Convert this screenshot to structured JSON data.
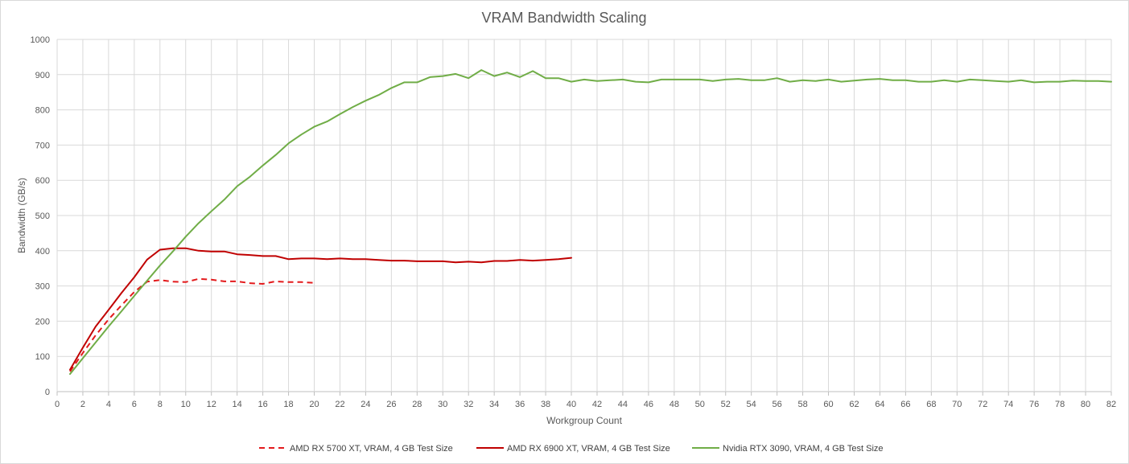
{
  "chart_data": {
    "type": "line",
    "title": "VRAM Bandwidth Scaling",
    "xlabel": "Workgroup Count",
    "ylabel": "Bandwidth (GB/s)",
    "xlim": [
      0,
      82
    ],
    "ylim": [
      0,
      1000
    ],
    "x_ticks": [
      0,
      2,
      4,
      6,
      8,
      10,
      12,
      14,
      16,
      18,
      20,
      22,
      24,
      26,
      28,
      30,
      32,
      34,
      36,
      38,
      40,
      42,
      44,
      46,
      48,
      50,
      52,
      54,
      56,
      58,
      60,
      62,
      64,
      66,
      68,
      70,
      72,
      74,
      76,
      78,
      80,
      82
    ],
    "y_ticks": [
      0,
      100,
      200,
      300,
      400,
      500,
      600,
      700,
      800,
      900,
      1000
    ],
    "grid": true,
    "legend_position": "bottom",
    "series": [
      {
        "name": "AMD RX 5700 XT, VRAM, 4 GB Test Size",
        "color": "#e31a1c",
        "dash": "dashed",
        "x": [
          1,
          2,
          3,
          4,
          5,
          6,
          7,
          8,
          9,
          10,
          11,
          12,
          13,
          14,
          15,
          16,
          17,
          18,
          19,
          20
        ],
        "values": [
          57,
          110,
          160,
          205,
          245,
          283,
          312,
          317,
          312,
          311,
          320,
          318,
          313,
          313,
          308,
          306,
          313,
          311,
          311,
          309
        ]
      },
      {
        "name": "AMD RX 6900 XT, VRAM, 4 GB Test Size",
        "color": "#c00000",
        "dash": "solid",
        "x": [
          1,
          2,
          3,
          4,
          5,
          6,
          7,
          8,
          9,
          10,
          11,
          12,
          13,
          14,
          15,
          16,
          17,
          18,
          19,
          20,
          21,
          22,
          23,
          24,
          25,
          26,
          27,
          28,
          29,
          30,
          31,
          32,
          33,
          34,
          35,
          36,
          37,
          38,
          39,
          40
        ],
        "values": [
          62,
          125,
          185,
          232,
          280,
          325,
          375,
          403,
          407,
          407,
          400,
          398,
          398,
          390,
          388,
          385,
          385,
          376,
          378,
          378,
          376,
          378,
          376,
          376,
          374,
          372,
          372,
          370,
          370,
          370,
          367,
          369,
          367,
          371,
          371,
          374,
          372,
          374,
          376,
          380
        ]
      },
      {
        "name": "Nvidia RTX 3090, VRAM, 4 GB Test Size",
        "color": "#70ad47",
        "dash": "solid",
        "x": [
          1,
          2,
          3,
          4,
          5,
          6,
          7,
          8,
          9,
          10,
          11,
          12,
          13,
          14,
          15,
          16,
          17,
          18,
          19,
          20,
          21,
          22,
          23,
          24,
          25,
          26,
          27,
          28,
          29,
          30,
          31,
          32,
          33,
          34,
          35,
          36,
          37,
          38,
          39,
          40,
          41,
          42,
          43,
          44,
          45,
          46,
          47,
          48,
          49,
          50,
          51,
          52,
          53,
          54,
          55,
          56,
          57,
          58,
          59,
          60,
          61,
          62,
          63,
          64,
          65,
          66,
          67,
          68,
          69,
          70,
          71,
          72,
          73,
          74,
          75,
          76,
          77,
          78,
          79,
          80,
          81,
          82
        ],
        "values": [
          50,
          95,
          140,
          185,
          228,
          272,
          315,
          358,
          398,
          440,
          478,
          512,
          545,
          583,
          610,
          642,
          672,
          705,
          730,
          752,
          767,
          788,
          808,
          826,
          842,
          862,
          878,
          878,
          893,
          896,
          902,
          890,
          913,
          896,
          906,
          893,
          910,
          890,
          890,
          880,
          886,
          882,
          884,
          886,
          880,
          878,
          886,
          886,
          886,
          886,
          882,
          886,
          888,
          884,
          884,
          890,
          880,
          884,
          882,
          886,
          880,
          883,
          886,
          888,
          884,
          884,
          880,
          880,
          884,
          880,
          886,
          884,
          882,
          880,
          884,
          878,
          880,
          880,
          883,
          882,
          882,
          880
        ]
      }
    ]
  }
}
